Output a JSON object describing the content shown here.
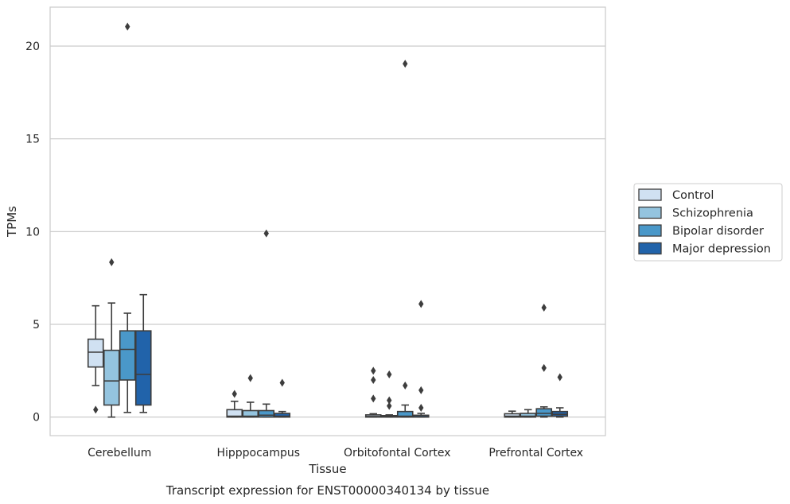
{
  "chart_data": {
    "type": "boxplot",
    "title": "",
    "caption": "Transcript expression for ENST00000340134 by tissue",
    "xlabel": "Tissue",
    "ylabel": "TPMs",
    "ylim": [
      -1,
      22.1
    ],
    "yticks": [
      0,
      5,
      10,
      15,
      20
    ],
    "grid": "horizontal",
    "legend_position": "right",
    "categories": [
      "Cerebellum",
      "Hipppocampus",
      "Orbitofontal Cortex",
      "Prefrontal Cortex"
    ],
    "series": [
      {
        "name": "Control",
        "color": "#d0e1f2",
        "boxes": [
          {
            "whislo": 1.7,
            "q1": 2.7,
            "med": 3.5,
            "q3": 4.2,
            "whishi": 6.0,
            "fliers": [
              0.4
            ]
          },
          {
            "whislo": 0.0,
            "q1": 0.0,
            "med": 0.05,
            "q3": 0.4,
            "whishi": 0.85,
            "fliers": [
              1.25
            ]
          },
          {
            "whislo": 0.0,
            "q1": 0.0,
            "med": 0.03,
            "q3": 0.12,
            "whishi": 0.18,
            "fliers": [
              1.0,
              2.0,
              2.5
            ]
          },
          {
            "whislo": 0.0,
            "q1": 0.0,
            "med": 0.05,
            "q3": 0.18,
            "whishi": 0.32,
            "fliers": []
          }
        ]
      },
      {
        "name": "Schizophrenia",
        "color": "#94c4df",
        "boxes": [
          {
            "whislo": 0.0,
            "q1": 0.65,
            "med": 1.95,
            "q3": 3.6,
            "whishi": 6.15,
            "fliers": [
              8.35
            ]
          },
          {
            "whislo": 0.0,
            "q1": 0.0,
            "med": 0.05,
            "q3": 0.35,
            "whishi": 0.8,
            "fliers": [
              2.1
            ]
          },
          {
            "whislo": 0.0,
            "q1": 0.0,
            "med": 0.02,
            "q3": 0.08,
            "whishi": 0.12,
            "fliers": [
              0.6,
              0.9,
              2.3
            ]
          },
          {
            "whislo": 0.0,
            "q1": 0.0,
            "med": 0.05,
            "q3": 0.2,
            "whishi": 0.4,
            "fliers": []
          }
        ]
      },
      {
        "name": "Bipolar disorder",
        "color": "#4a98c9",
        "boxes": [
          {
            "whislo": 0.25,
            "q1": 2.0,
            "med": 3.65,
            "q3": 4.65,
            "whishi": 5.6,
            "fliers": [
              21.05
            ]
          },
          {
            "whislo": 0.0,
            "q1": 0.0,
            "med": 0.1,
            "q3": 0.35,
            "whishi": 0.7,
            "fliers": [
              9.9
            ]
          },
          {
            "whislo": 0.0,
            "q1": 0.0,
            "med": 0.05,
            "q3": 0.3,
            "whishi": 0.65,
            "fliers": [
              1.7,
              19.05
            ]
          },
          {
            "whislo": 0.0,
            "q1": 0.05,
            "med": 0.2,
            "q3": 0.45,
            "whishi": 0.55,
            "fliers": [
              2.65,
              5.9
            ]
          }
        ]
      },
      {
        "name": "Major depression",
        "color": "#2163aa",
        "boxes": [
          {
            "whislo": 0.25,
            "q1": 0.65,
            "med": 2.3,
            "q3": 4.65,
            "whishi": 6.6,
            "fliers": []
          },
          {
            "whislo": 0.0,
            "q1": 0.0,
            "med": 0.05,
            "q3": 0.2,
            "whishi": 0.3,
            "fliers": [
              1.85
            ]
          },
          {
            "whislo": 0.0,
            "q1": 0.0,
            "med": 0.02,
            "q3": 0.1,
            "whishi": 0.2,
            "fliers": [
              0.5,
              1.45,
              6.1
            ]
          },
          {
            "whislo": 0.0,
            "q1": 0.05,
            "med": 0.15,
            "q3": 0.3,
            "whishi": 0.5,
            "fliers": [
              2.15
            ]
          }
        ]
      }
    ]
  }
}
